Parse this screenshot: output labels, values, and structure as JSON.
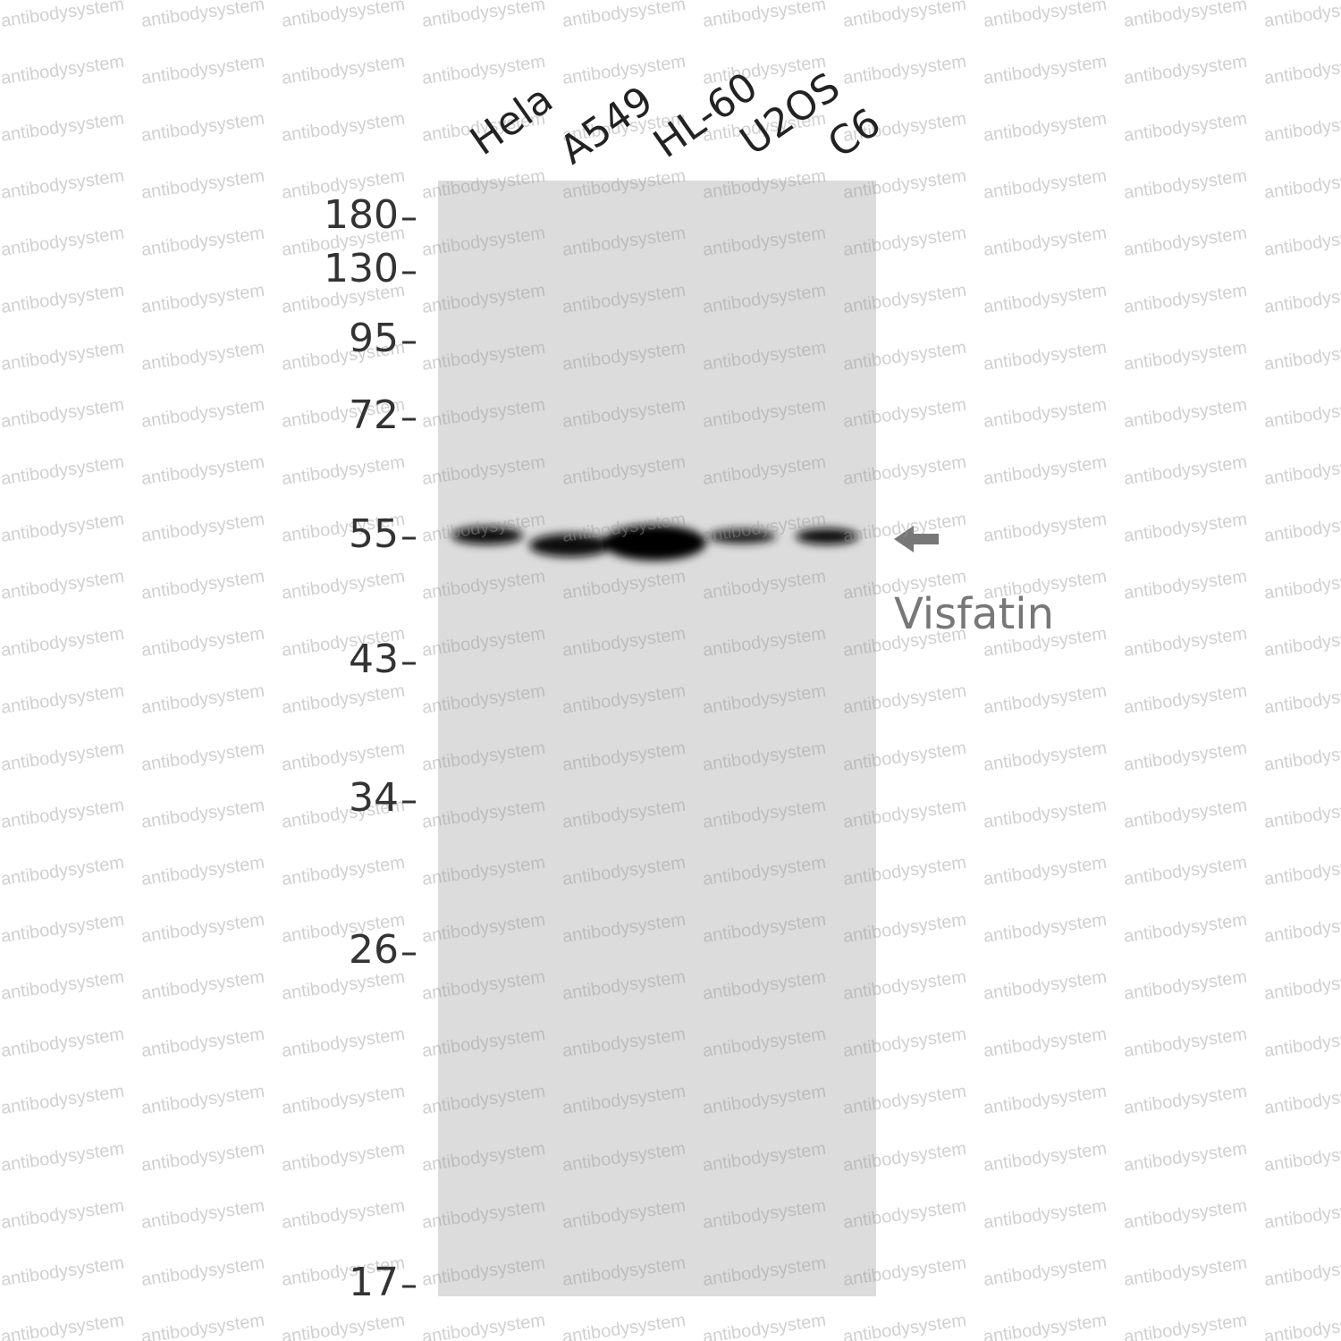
{
  "lanes": [
    "Hela",
    "A549",
    "HL-60",
    "U2OS",
    "C6"
  ],
  "markers": [
    180,
    130,
    95,
    72,
    55,
    43,
    34,
    26,
    17
  ],
  "target": "Visfatin",
  "watermark": "antibodysystem"
}
